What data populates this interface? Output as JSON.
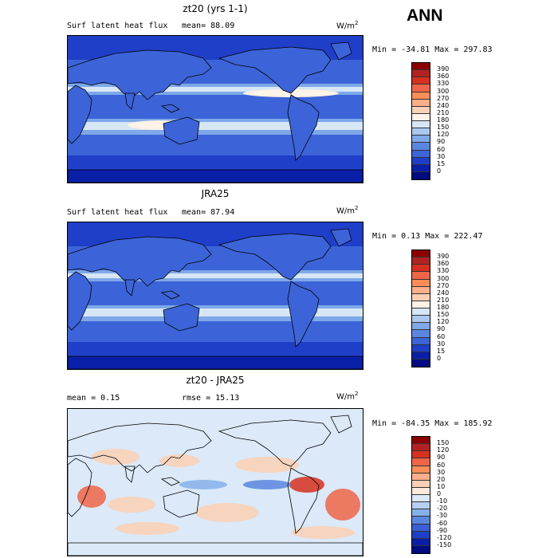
{
  "season_label": "ANN",
  "panels": [
    {
      "title": "zt20 (yrs 1-1)",
      "left_label": "Surf latent heat flux",
      "mid_label": "mean=  88.09",
      "unit": "W/m",
      "unit_sup": "2",
      "minmax": "Min = -34.81 Max = 297.83",
      "colorbar": {
        "labels": [
          "390",
          "360",
          "330",
          "300",
          "270",
          "240",
          "210",
          "180",
          "150",
          "120",
          "90",
          "60",
          "30",
          "15",
          "0"
        ],
        "colors": [
          "#8b0000",
          "#b22222",
          "#d7301f",
          "#ef6548",
          "#fc8d59",
          "#fdae8a",
          "#fcd0b4",
          "#fff2e6",
          "#d6e6f5",
          "#aac8ee",
          "#7ea8e8",
          "#5b86e0",
          "#3c64d8",
          "#1f3fc8",
          "#0a1fa8",
          "#000c80"
        ]
      },
      "map_style": "model"
    },
    {
      "title": "JRA25",
      "left_label": "Surf latent heat flux",
      "mid_label": "mean=  87.94",
      "unit": "W/m",
      "unit_sup": "2",
      "minmax": "Min =   0.13 Max = 222.47",
      "colorbar": {
        "labels": [
          "390",
          "360",
          "330",
          "300",
          "270",
          "240",
          "210",
          "180",
          "150",
          "120",
          "90",
          "60",
          "30",
          "15",
          "0"
        ],
        "colors": [
          "#8b0000",
          "#b22222",
          "#d7301f",
          "#ef6548",
          "#fc8d59",
          "#fdae8a",
          "#fcd0b4",
          "#fff2e6",
          "#d6e6f5",
          "#aac8ee",
          "#7ea8e8",
          "#5b86e0",
          "#3c64d8",
          "#1f3fc8",
          "#0a1fa8",
          "#000c80"
        ]
      },
      "map_style": "obs"
    },
    {
      "title": "zt20 - JRA25",
      "left_label": "mean =   0.15",
      "mid_label": "rmse =  15.13",
      "unit": "W/m",
      "unit_sup": "2",
      "minmax": "Min = -84.35 Max = 185.92",
      "colorbar": {
        "labels": [
          "150",
          "120",
          "90",
          "60",
          "30",
          "20",
          "10",
          "0",
          "-10",
          "-20",
          "-30",
          "-60",
          "-90",
          "-120",
          "-150"
        ],
        "colors": [
          "#8b0000",
          "#b22222",
          "#d7301f",
          "#ef6548",
          "#fc8d59",
          "#fdae8a",
          "#fcd0b4",
          "#fde9dc",
          "#dbe9f8",
          "#b4cff2",
          "#86b0ea",
          "#5b86e0",
          "#3a5fd6",
          "#1f3fc8",
          "#0a1fa8",
          "#000c80"
        ]
      },
      "map_style": "diff"
    }
  ]
}
